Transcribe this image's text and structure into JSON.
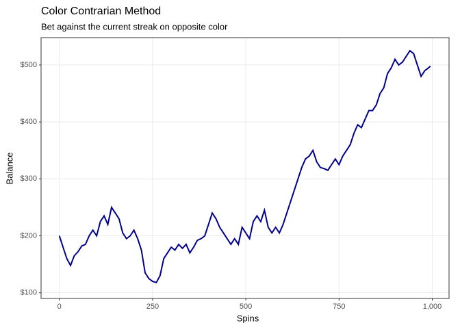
{
  "chart_data": {
    "type": "line",
    "title": "Color Contrarian Method",
    "subtitle": "Bet against the current streak on opposite color",
    "x_label": "Spins",
    "y_label": "Balance",
    "x": [
      0,
      10,
      20,
      30,
      40,
      50,
      60,
      70,
      80,
      90,
      100,
      110,
      120,
      130,
      140,
      150,
      160,
      170,
      180,
      190,
      200,
      210,
      220,
      230,
      240,
      250,
      260,
      270,
      280,
      290,
      300,
      310,
      320,
      330,
      340,
      350,
      360,
      370,
      380,
      390,
      400,
      410,
      420,
      430,
      440,
      450,
      460,
      470,
      480,
      490,
      500,
      510,
      520,
      530,
      540,
      550,
      560,
      570,
      580,
      590,
      600,
      610,
      620,
      630,
      640,
      650,
      660,
      670,
      680,
      690,
      700,
      710,
      720,
      730,
      740,
      750,
      760,
      770,
      780,
      790,
      800,
      810,
      820,
      830,
      840,
      850,
      860,
      870,
      880,
      890,
      900,
      910,
      920,
      930,
      940,
      950,
      960,
      970,
      980,
      990,
      995
    ],
    "series": [
      {
        "name": "Balance",
        "color": "#00008b",
        "values": [
          200,
          180,
          160,
          148,
          165,
          172,
          182,
          185,
          200,
          210,
          200,
          225,
          235,
          220,
          250,
          240,
          230,
          205,
          195,
          200,
          210,
          195,
          175,
          135,
          125,
          120,
          118,
          130,
          160,
          170,
          180,
          175,
          185,
          178,
          185,
          170,
          180,
          192,
          195,
          200,
          220,
          240,
          230,
          215,
          205,
          195,
          185,
          195,
          185,
          215,
          205,
          195,
          225,
          235,
          225,
          245,
          215,
          205,
          215,
          205,
          220,
          240,
          260,
          280,
          300,
          320,
          335,
          340,
          350,
          330,
          320,
          318,
          315,
          325,
          335,
          325,
          340,
          350,
          360,
          380,
          395,
          390,
          405,
          420,
          420,
          430,
          450,
          460,
          485,
          495,
          510,
          500,
          505,
          515,
          525,
          520,
          500,
          480,
          490,
          495,
          498
        ]
      }
    ],
    "xlim": [
      -49,
      1045
    ],
    "ylim": [
      90,
      548
    ],
    "xticks": [
      0,
      250,
      500,
      750,
      {
        "value": 1000,
        "label": "1,000"
      }
    ],
    "yticks": [
      {
        "value": 100,
        "label": "$100"
      },
      {
        "value": 200,
        "label": "$200"
      },
      {
        "value": 300,
        "label": "$300"
      },
      {
        "value": 400,
        "label": "$400"
      },
      {
        "value": 500,
        "label": "$500"
      }
    ],
    "grid": true
  }
}
